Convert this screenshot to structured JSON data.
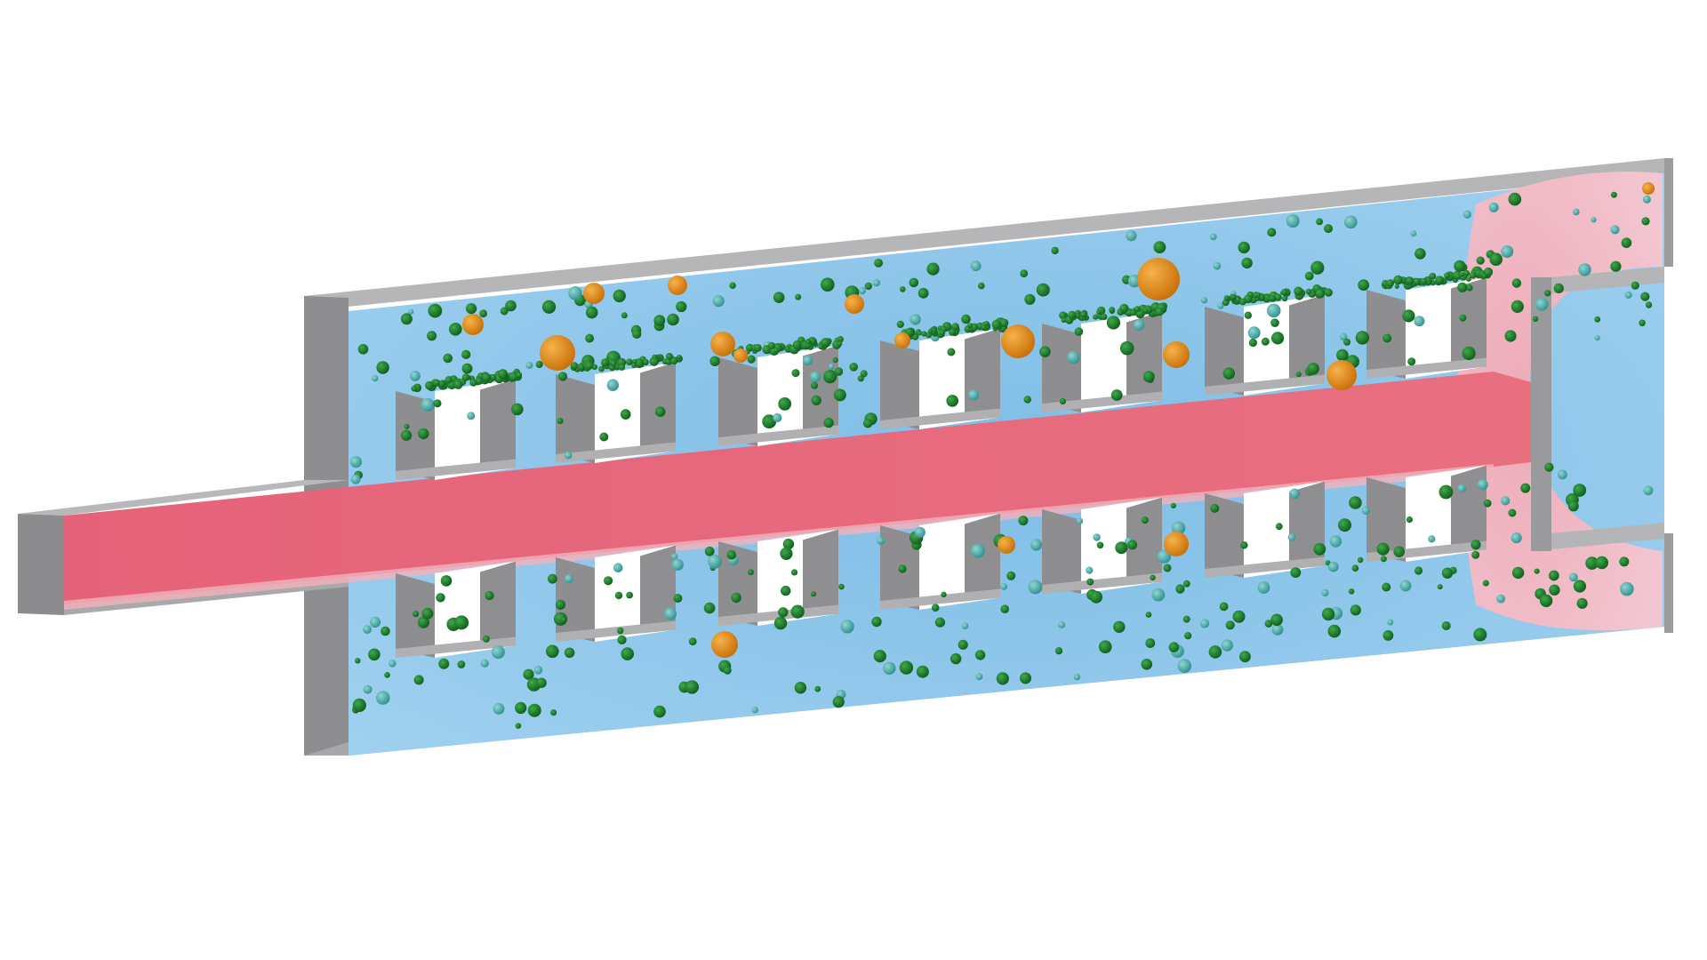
{
  "scene": {
    "description_visible_text": "",
    "colors": {
      "background": "#ffffff",
      "wall_top": "#b4b4b6",
      "wall_side": "#8d8d90",
      "wall_front": "#a3a3a6",
      "fluid_water": "#8fc6e8",
      "fluid_water_light": "#c8e4f4",
      "fluid_hot": "#e8677a",
      "fluid_hot_light": "#f4b8c2",
      "particle_green": "#1c7a2c",
      "particle_teal": "#3aa6a4",
      "particle_orange": "#e28a12"
    },
    "pillar_rows": 2,
    "pillars_per_row": 7
  }
}
